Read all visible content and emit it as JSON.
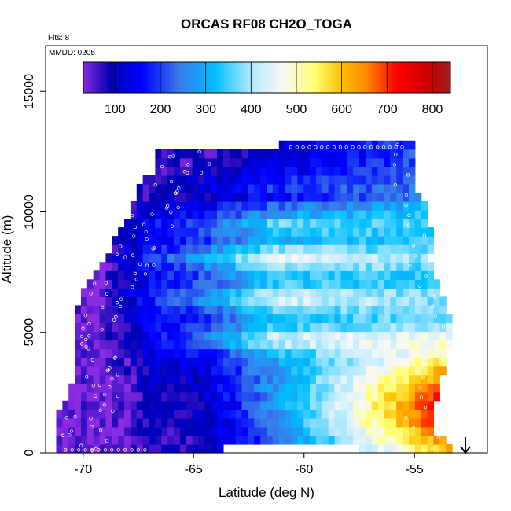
{
  "chart_data": {
    "type": "heatmap",
    "title": "ORCAS RF08 CH2O_TOGA",
    "subtitle_flights": "Flts: 8",
    "subtitle_date": "MMDD: 0205",
    "xlabel": "Latitude (deg N)",
    "ylabel": "Altitude (m)",
    "xlim": [
      -71.7,
      -51.7
    ],
    "ylim": [
      0,
      16900
    ],
    "x_ticks": [
      -70,
      -65,
      -60,
      -55
    ],
    "x_tick_labels": [
      "-70",
      "-65",
      "-60",
      "-55"
    ],
    "y_ticks": [
      0,
      5000,
      10000,
      15000
    ],
    "y_tick_labels": [
      "0",
      "5000",
      "10000",
      "15000"
    ],
    "colorbar": {
      "range": [
        30,
        840
      ],
      "ticks": [
        100,
        200,
        300,
        400,
        500,
        600,
        700,
        800
      ],
      "tick_labels": [
        "100",
        "200",
        "300",
        "400",
        "500",
        "600",
        "700",
        "800"
      ],
      "color_stops": [
        {
          "value": 30,
          "color": "#8a2be2"
        },
        {
          "value": 90,
          "color": "#0000b0"
        },
        {
          "value": 160,
          "color": "#0000ff"
        },
        {
          "value": 240,
          "color": "#3a78e8"
        },
        {
          "value": 320,
          "color": "#00bfff"
        },
        {
          "value": 400,
          "color": "#b0e8ff"
        },
        {
          "value": 470,
          "color": "#f8f8f8"
        },
        {
          "value": 540,
          "color": "#ffff70"
        },
        {
          "value": 600,
          "color": "#ffc000"
        },
        {
          "value": 660,
          "color": "#ff8000"
        },
        {
          "value": 720,
          "color": "#ff0000"
        },
        {
          "value": 790,
          "color": "#cc0000"
        },
        {
          "value": 840,
          "color": "#a02020"
        }
      ]
    },
    "grid": false,
    "legend_placement": "top (colorbar inside plot)",
    "arrow_marker": {
      "lat": -53.0,
      "direction": "down"
    },
    "domain": {
      "lat_min_by_alt": [
        [
          0,
          -71.3
        ],
        [
          1600,
          -71.3
        ],
        [
          2200,
          -70.6
        ],
        [
          3500,
          -70.4
        ],
        [
          5000,
          -70.5
        ],
        [
          6000,
          -70.4
        ],
        [
          7000,
          -69.8
        ],
        [
          8000,
          -69.0
        ],
        [
          9000,
          -68.5
        ],
        [
          10000,
          -67.9
        ],
        [
          11000,
          -67.5
        ],
        [
          12000,
          -66.6
        ],
        [
          12600,
          -66.6
        ]
      ],
      "lat_max_by_alt": [
        [
          0,
          -53.3
        ],
        [
          600,
          -53.5
        ],
        [
          1000,
          -54.3
        ],
        [
          5000,
          -53.3
        ],
        [
          5500,
          -53.3
        ],
        [
          7000,
          -53.9
        ],
        [
          8000,
          -54.3
        ],
        [
          9000,
          -54.2
        ],
        [
          10000,
          -54.4
        ],
        [
          11000,
          -54.9
        ],
        [
          12600,
          -55.0
        ],
        [
          13000,
          -55.2
        ]
      ],
      "alt_max": 13000,
      "notches": [
        {
          "alt_min": 0,
          "alt_max": 450,
          "lat_min": -63.6,
          "lat_max": -57.6
        },
        {
          "alt_min": 12600,
          "alt_max": 13000,
          "lat_min": -66.7,
          "lat_max": -61.0
        }
      ]
    },
    "field_model": {
      "description": "CH2O mixing ratio; low (~60-150) in south/left and upper levels, high (600-800) in the lower northern/right region",
      "base_low": 80,
      "north_high": 760,
      "warm_core_alt": 1800,
      "layers": [
        {
          "alt": 8100,
          "boost": 160
        },
        {
          "alt": 9500,
          "boost": 110
        },
        {
          "alt": 6400,
          "boost": 120
        },
        {
          "alt": 4700,
          "boost": 140
        },
        {
          "alt": 11100,
          "boost": 70
        }
      ]
    }
  }
}
